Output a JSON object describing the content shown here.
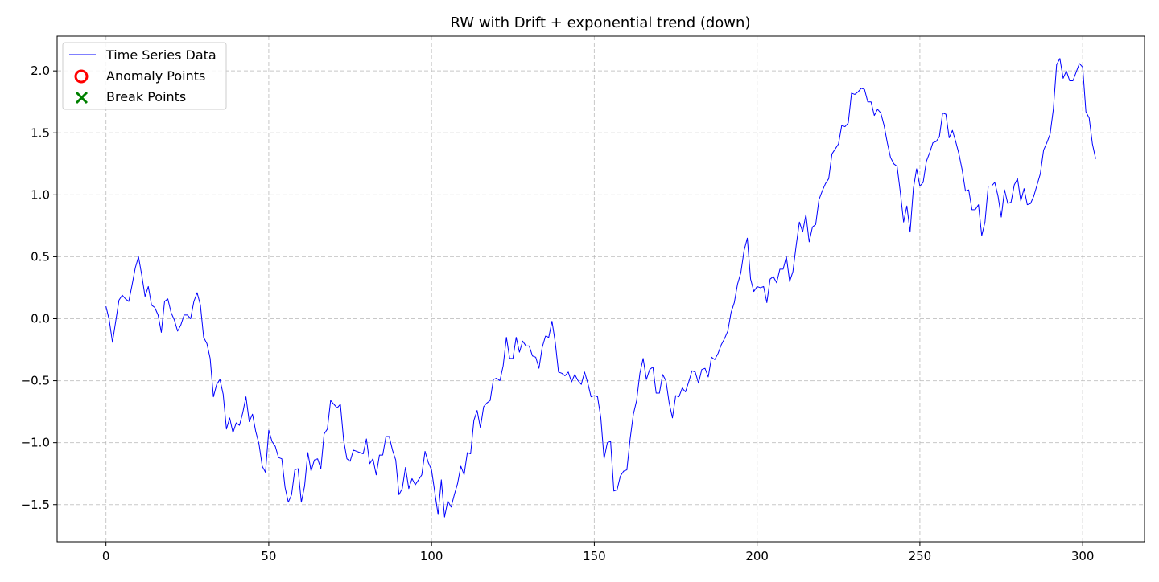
{
  "chart_data": {
    "type": "line",
    "title": "RW with Drift + exponential trend (down)",
    "xlabel": "",
    "ylabel": "",
    "xlim": [
      -15,
      319
    ],
    "ylim": [
      -1.8,
      2.28
    ],
    "x_ticks": [
      0,
      50,
      100,
      150,
      200,
      250,
      300
    ],
    "x_tick_labels": [
      "0",
      "50",
      "100",
      "150",
      "200",
      "250",
      "300"
    ],
    "y_ticks": [
      -1.5,
      -1.0,
      -0.5,
      0.0,
      0.5,
      1.0,
      1.5,
      2.0
    ],
    "y_tick_labels": [
      "−1.5",
      "−1.0",
      "−0.5",
      "0.0",
      "0.5",
      "1.0",
      "1.5",
      "2.0"
    ],
    "grid": true,
    "legend_position": "top-left",
    "legend": [
      {
        "label": "Time Series Data",
        "marker": "line",
        "color": "#0000ff"
      },
      {
        "label": "Anomaly Points",
        "marker": "circle",
        "color": "#ff0000"
      },
      {
        "label": "Break Points",
        "marker": "x",
        "color": "#008000"
      }
    ],
    "series": [
      {
        "name": "Time Series Data",
        "color": "#0000ff",
        "x_start": 0,
        "x_step": 1,
        "values": [
          0.1,
          -0.01,
          -0.19,
          -0.02,
          0.15,
          0.19,
          0.16,
          0.14,
          0.27,
          0.41,
          0.5,
          0.35,
          0.18,
          0.26,
          0.11,
          0.09,
          0.03,
          -0.11,
          0.14,
          0.16,
          0.05,
          -0.01,
          -0.1,
          -0.05,
          0.03,
          0.03,
          0.0,
          0.14,
          0.21,
          0.11,
          -0.15,
          -0.2,
          -0.32,
          -0.63,
          -0.53,
          -0.49,
          -0.61,
          -0.89,
          -0.8,
          -0.92,
          -0.84,
          -0.86,
          -0.76,
          -0.63,
          -0.83,
          -0.77,
          -0.91,
          -1.01,
          -1.19,
          -1.24,
          -0.9,
          -0.99,
          -1.03,
          -1.12,
          -1.13,
          -1.36,
          -1.48,
          -1.42,
          -1.22,
          -1.21,
          -1.48,
          -1.35,
          -1.08,
          -1.23,
          -1.14,
          -1.13,
          -1.21,
          -0.93,
          -0.89,
          -0.66,
          -0.69,
          -0.72,
          -0.69,
          -0.98,
          -1.13,
          -1.15,
          -1.06,
          -1.07,
          -1.08,
          -1.09,
          -0.97,
          -1.17,
          -1.13,
          -1.26,
          -1.1,
          -1.1,
          -0.95,
          -0.95,
          -1.06,
          -1.14,
          -1.42,
          -1.37,
          -1.2,
          -1.37,
          -1.29,
          -1.34,
          -1.3,
          -1.26,
          -1.07,
          -1.16,
          -1.22,
          -1.4,
          -1.58,
          -1.3,
          -1.6,
          -1.47,
          -1.52,
          -1.42,
          -1.33,
          -1.19,
          -1.26,
          -1.08,
          -1.09,
          -0.82,
          -0.74,
          -0.88,
          -0.71,
          -0.68,
          -0.66,
          -0.49,
          -0.48,
          -0.5,
          -0.38,
          -0.15,
          -0.32,
          -0.32,
          -0.15,
          -0.27,
          -0.18,
          -0.22,
          -0.22,
          -0.3,
          -0.31,
          -0.4,
          -0.23,
          -0.14,
          -0.15,
          -0.02,
          -0.19,
          -0.43,
          -0.44,
          -0.46,
          -0.43,
          -0.51,
          -0.45,
          -0.5,
          -0.53,
          -0.43,
          -0.52,
          -0.63,
          -0.62,
          -0.63,
          -0.8,
          -1.13,
          -1.0,
          -0.99,
          -1.39,
          -1.38,
          -1.27,
          -1.23,
          -1.22,
          -0.97,
          -0.77,
          -0.66,
          -0.44,
          -0.32,
          -0.49,
          -0.41,
          -0.39,
          -0.6,
          -0.6,
          -0.45,
          -0.5,
          -0.68,
          -0.8,
          -0.62,
          -0.63,
          -0.56,
          -0.59,
          -0.51,
          -0.42,
          -0.43,
          -0.52,
          -0.41,
          -0.4,
          -0.47,
          -0.31,
          -0.33,
          -0.28,
          -0.21,
          -0.16,
          -0.1,
          0.05,
          0.13,
          0.28,
          0.37,
          0.55,
          0.65,
          0.32,
          0.22,
          0.26,
          0.25,
          0.26,
          0.13,
          0.32,
          0.34,
          0.29,
          0.4,
          0.4,
          0.5,
          0.3,
          0.38,
          0.59,
          0.78,
          0.7,
          0.84,
          0.62,
          0.74,
          0.76,
          0.96,
          1.03,
          1.09,
          1.13,
          1.33,
          1.37,
          1.41,
          1.56,
          1.55,
          1.58,
          1.82,
          1.81,
          1.83,
          1.86,
          1.85,
          1.75,
          1.75,
          1.64,
          1.69,
          1.66,
          1.56,
          1.42,
          1.3,
          1.25,
          1.23,
          1.02,
          0.78,
          0.91,
          0.7,
          1.05,
          1.21,
          1.07,
          1.1,
          1.27,
          1.34,
          1.42,
          1.43,
          1.47,
          1.66,
          1.65,
          1.46,
          1.52,
          1.43,
          1.33,
          1.2,
          1.03,
          1.04,
          0.88,
          0.88,
          0.92,
          0.67,
          0.78,
          1.07,
          1.07,
          1.1,
          0.99,
          0.82,
          1.04,
          0.93,
          0.94,
          1.08,
          1.13,
          0.95,
          1.05,
          0.92,
          0.93,
          0.99,
          1.08,
          1.17,
          1.36,
          1.42,
          1.49,
          1.69,
          2.05,
          2.1,
          1.94,
          2.0,
          1.92,
          1.92,
          1.99,
          2.06,
          2.03,
          1.67,
          1.62,
          1.41,
          1.29
        ]
      }
    ]
  }
}
